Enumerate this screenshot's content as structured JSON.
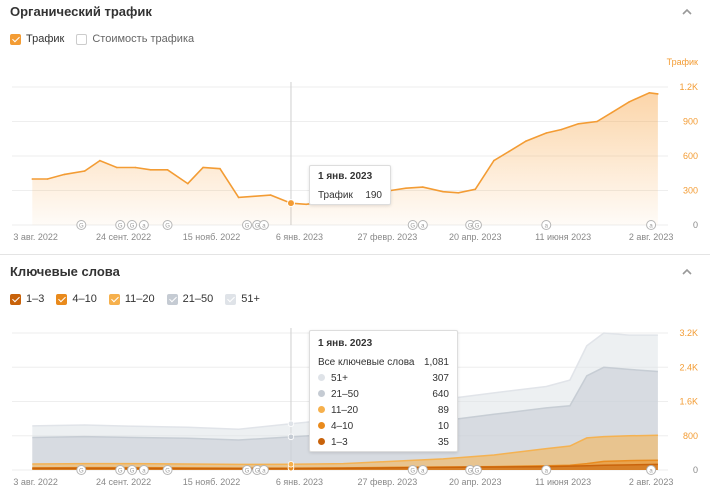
{
  "traffic_panel": {
    "title": "Органический трафик",
    "legend": [
      {
        "label": "Трафик",
        "checked": true,
        "color": "#f39c34"
      },
      {
        "label": "Стоимость трафика",
        "checked": false,
        "color": "#cccccc"
      }
    ],
    "tooltip": {
      "date": "1 янв. 2023",
      "label": "Трафик",
      "value": "190"
    }
  },
  "keywords_panel": {
    "title": "Ключевые слова",
    "legend": [
      {
        "label": "1–3",
        "checked": true,
        "color": "#c8620a"
      },
      {
        "label": "4–10",
        "checked": true,
        "color": "#e98a1c"
      },
      {
        "label": "11–20",
        "checked": true,
        "color": "#f6b04c"
      },
      {
        "label": "21–50",
        "checked": true,
        "color": "#c5cbd3"
      },
      {
        "label": "51+",
        "checked": true,
        "color": "#dfe3e8"
      }
    ],
    "tooltip": {
      "date": "1 янв. 2023",
      "total_label": "Все ключевые слова",
      "total_value": "1,081",
      "rows": [
        {
          "label": "51+",
          "value": "307",
          "color": "#dfe3e8"
        },
        {
          "label": "21–50",
          "value": "640",
          "color": "#c5cbd3"
        },
        {
          "label": "11–20",
          "value": "89",
          "color": "#f6b04c"
        },
        {
          "label": "4–10",
          "value": "10",
          "color": "#e98a1c"
        },
        {
          "label": "1–3",
          "value": "35",
          "color": "#c8620a"
        }
      ]
    }
  },
  "chart_data": [
    {
      "type": "area",
      "title": "Органический трафик",
      "ylabel": "Трафик",
      "ylim": [
        0,
        1200
      ],
      "yticks": [
        "0",
        "300",
        "600",
        "900",
        "1.2K"
      ],
      "xticks": [
        "3 авг. 2022",
        "24 сент. 2022",
        "15 нояб. 2022",
        "6 янв. 2023",
        "27 февр. 2023",
        "20 апр. 2023",
        "11 июня 2023",
        "2 авг. 2023"
      ],
      "x": [
        "2022-08-01",
        "2022-08-10",
        "2022-08-20",
        "2022-09-01",
        "2022-09-10",
        "2022-09-20",
        "2022-10-01",
        "2022-10-10",
        "2022-10-20",
        "2022-11-01",
        "2022-11-10",
        "2022-11-20",
        "2022-12-01",
        "2022-12-10",
        "2022-12-20",
        "2023-01-01",
        "2023-01-10",
        "2023-01-20",
        "2023-02-01",
        "2023-02-10",
        "2023-02-20",
        "2023-03-01",
        "2023-03-10",
        "2023-03-20",
        "2023-04-01",
        "2023-04-10",
        "2023-04-20",
        "2023-05-01",
        "2023-05-10",
        "2023-05-20",
        "2023-06-01",
        "2023-06-10",
        "2023-06-20",
        "2023-07-01",
        "2023-07-10",
        "2023-07-20",
        "2023-08-01",
        "2023-08-06"
      ],
      "values": [
        400,
        400,
        440,
        470,
        560,
        500,
        500,
        480,
        480,
        360,
        500,
        490,
        240,
        250,
        260,
        190,
        180,
        200,
        220,
        260,
        280,
        300,
        320,
        330,
        290,
        280,
        310,
        560,
        640,
        730,
        800,
        830,
        880,
        900,
        980,
        1070,
        1150,
        1140
      ],
      "series": [
        {
          "name": "Трафик",
          "color": "#f39c34"
        }
      ]
    },
    {
      "type": "area",
      "title": "Ключевые слова",
      "ylim": [
        0,
        3200
      ],
      "yticks": [
        "0",
        "800",
        "1.6K",
        "2.4K",
        "3.2K"
      ],
      "xticks": [
        "3 авг. 2022",
        "24 сент. 2022",
        "15 нояб. 2022",
        "6 янв. 2023",
        "27 февр. 2023",
        "20 апр. 2023",
        "11 июня 2023",
        "2 авг. 2023"
      ],
      "x": [
        "2022-08-01",
        "2022-09-01",
        "2022-10-01",
        "2022-11-01",
        "2022-12-01",
        "2023-01-01",
        "2023-02-01",
        "2023-03-01",
        "2023-04-01",
        "2023-05-01",
        "2023-06-01",
        "2023-06-15",
        "2023-06-25",
        "2023-07-05",
        "2023-07-20",
        "2023-08-06"
      ],
      "series": [
        {
          "name": "1–3",
          "color": "#c8620a",
          "values": [
            40,
            40,
            40,
            35,
            35,
            35,
            40,
            50,
            60,
            70,
            80,
            90,
            100,
            110,
            120,
            130
          ]
        },
        {
          "name": "4–10",
          "color": "#e98a1c",
          "values": [
            50,
            55,
            55,
            50,
            45,
            45,
            50,
            60,
            70,
            80,
            100,
            110,
            150,
            200,
            220,
            230
          ]
        },
        {
          "name": "11–20",
          "color": "#f6b04c",
          "values": [
            140,
            150,
            150,
            140,
            130,
            134,
            150,
            200,
            260,
            350,
            500,
            560,
            750,
            780,
            800,
            810
          ]
        },
        {
          "name": "21–50",
          "color": "#c5cbd3",
          "values": [
            760,
            780,
            760,
            740,
            700,
            774,
            850,
            1000,
            1150,
            1300,
            1450,
            1500,
            2200,
            2400,
            2350,
            2300
          ]
        },
        {
          "name": "51+",
          "color": "#dfe3e8",
          "values": [
            1030,
            1050,
            1020,
            1000,
            950,
            1081,
            1200,
            1450,
            1650,
            1800,
            1950,
            2100,
            2900,
            3200,
            3150,
            3150
          ]
        }
      ]
    }
  ]
}
